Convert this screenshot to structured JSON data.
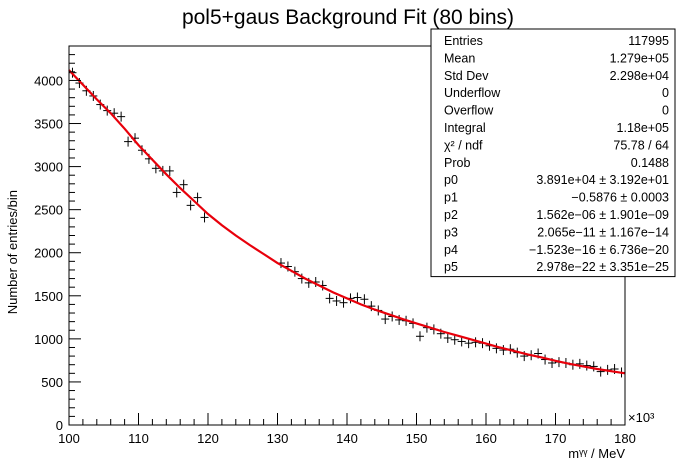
{
  "chart_data": {
    "type": "scatter",
    "title": "pol5+gaus Background Fit (80 bins)",
    "xlabel": "mᵞᵞ / MeV",
    "ylabel": "Number of entries/bin",
    "x_exponent_label": "×10³",
    "xlim": [
      100,
      180
    ],
    "ylim": [
      0,
      4400
    ],
    "grid": false,
    "x_ticks": [
      100,
      110,
      120,
      130,
      140,
      150,
      160,
      170,
      180
    ],
    "x_tick_labels": [
      "100",
      "110",
      "120",
      "130",
      "140",
      "150",
      "160",
      "170",
      "180"
    ],
    "y_ticks": [
      0,
      500,
      1000,
      1500,
      2000,
      2500,
      3000,
      3500,
      4000
    ],
    "y_tick_labels": [
      "0",
      "500",
      "1000",
      "1500",
      "2000",
      "2500",
      "3000",
      "3500",
      "4000"
    ],
    "series": [
      {
        "kind": "data",
        "style": "cross markers",
        "color": "#000000",
        "x": [
          100.5,
          101.5,
          102.5,
          103.5,
          104.5,
          105.5,
          106.5,
          107.5,
          108.5,
          109.5,
          110.5,
          111.5,
          112.5,
          113.5,
          114.5,
          115.5,
          116.5,
          117.5,
          118.5,
          119.5,
          130.5,
          131.5,
          132.5,
          133.5,
          134.5,
          135.5,
          136.5,
          137.5,
          138.5,
          139.5,
          140.5,
          141.5,
          142.5,
          143.5,
          144.5,
          145.5,
          146.5,
          147.5,
          148.5,
          149.5,
          150.5,
          151.5,
          152.5,
          153.5,
          154.5,
          155.5,
          156.5,
          157.5,
          158.5,
          159.5,
          160.5,
          161.5,
          162.5,
          163.5,
          164.5,
          165.5,
          166.5,
          167.5,
          168.5,
          169.5,
          170.5,
          171.5,
          172.5,
          173.5,
          174.5,
          175.5,
          176.5,
          177.5,
          178.5,
          179.5
        ],
        "y": [
          4090,
          3970,
          3880,
          3820,
          3720,
          3650,
          3620,
          3580,
          3290,
          3330,
          3190,
          3090,
          2980,
          2950,
          2950,
          2700,
          2790,
          2550,
          2640,
          2410,
          1880,
          1840,
          1780,
          1700,
          1650,
          1660,
          1620,
          1470,
          1440,
          1420,
          1470,
          1480,
          1460,
          1380,
          1330,
          1230,
          1260,
          1220,
          1210,
          1180,
          1030,
          1130,
          1110,
          1060,
          1010,
          990,
          970,
          950,
          960,
          950,
          920,
          890,
          870,
          880,
          840,
          800,
          810,
          830,
          760,
          720,
          730,
          720,
          700,
          710,
          690,
          680,
          620,
          640,
          650,
          610
        ]
      },
      {
        "kind": "fit",
        "name": "pol5+gaus",
        "style": "line",
        "color": "#e8000b",
        "x": [
          100,
          102,
          104,
          106,
          108,
          110,
          112,
          114,
          116,
          118,
          120,
          122,
          124,
          126,
          128,
          130,
          132,
          134,
          136,
          138,
          140,
          142,
          144,
          146,
          148,
          150,
          152,
          154,
          156,
          158,
          160,
          162,
          164,
          166,
          168,
          170,
          172,
          174,
          176,
          178,
          180
        ],
        "y": [
          4120,
          3950,
          3780,
          3620,
          3440,
          3250,
          3080,
          2910,
          2750,
          2600,
          2450,
          2320,
          2200,
          2090,
          1985,
          1880,
          1790,
          1700,
          1620,
          1540,
          1470,
          1400,
          1340,
          1285,
          1230,
          1180,
          1130,
          1080,
          1035,
          990,
          945,
          900,
          860,
          820,
          785,
          745,
          710,
          680,
          650,
          625,
          600
        ]
      }
    ],
    "stats_box": {
      "placement": "top-right",
      "rows": [
        {
          "label": "Entries",
          "value": "117995"
        },
        {
          "label": "Mean",
          "value": "1.279e+05"
        },
        {
          "label": "Std Dev",
          "value": "2.298e+04"
        },
        {
          "label": "Underflow",
          "value": "0"
        },
        {
          "label": "Overflow",
          "value": "0"
        },
        {
          "label": "Integral",
          "value": "1.18e+05"
        },
        {
          "label": "χ² / ndf",
          "value": "75.78 / 64"
        },
        {
          "label": "Prob",
          "value": "0.1488"
        },
        {
          "label": "p0",
          "value": "3.891e+04 ± 3.192e+01"
        },
        {
          "label": "p1",
          "value": "−0.5876 ± 0.0003"
        },
        {
          "label": "p2",
          "value": "1.562e−06 ± 1.901e−09"
        },
        {
          "label": "p3",
          "value": "2.065e−11 ± 1.167e−14"
        },
        {
          "label": "p4",
          "value": "−1.523e−16 ± 6.736e−20"
        },
        {
          "label": "p5",
          "value": "2.978e−22 ± 3.351e−25"
        }
      ]
    }
  }
}
